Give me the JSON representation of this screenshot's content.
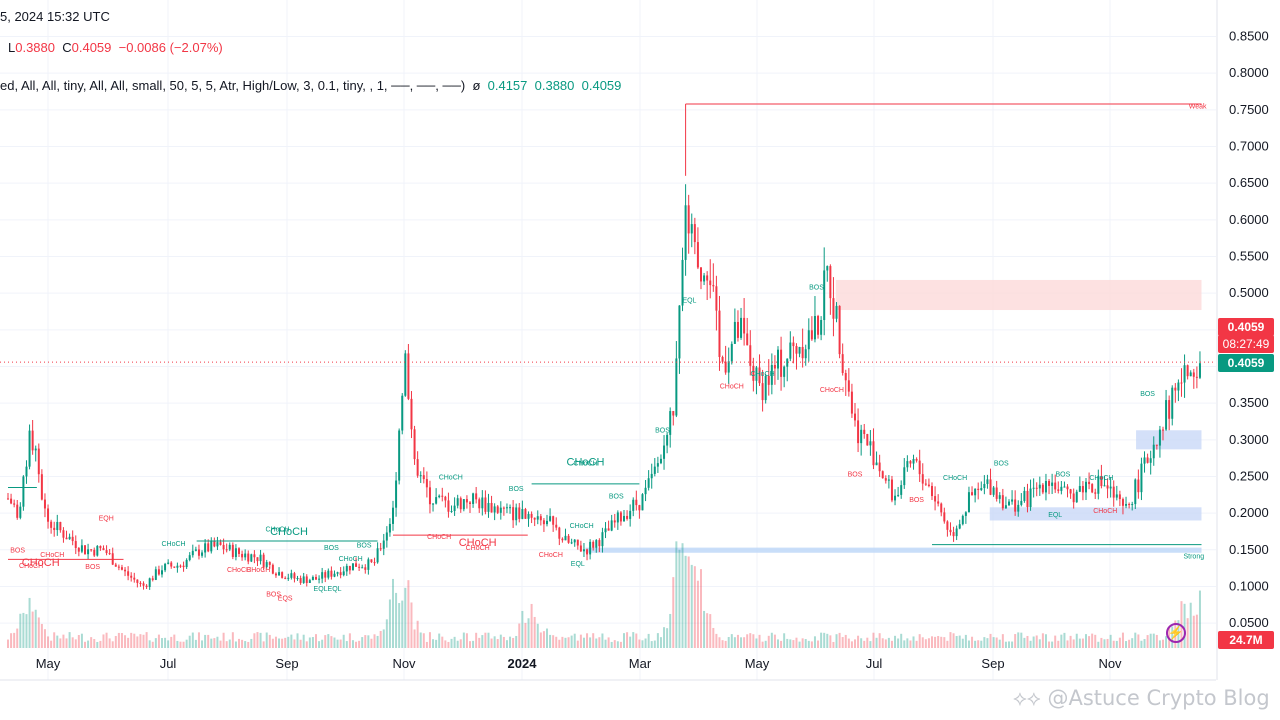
{
  "header": {
    "time": "5, 2024 15:32 UTC",
    "ohlc": {
      "l_label": "L",
      "l": "0.3880",
      "c_label": "C",
      "c": "0.4059",
      "chg": "−0.0086 (−2.07%)"
    },
    "indicator": {
      "params": "ed, All, All, tiny, All, All, small, 50, 5, 5, Atr, High/Low, 3, 0.1, tiny, , 1, ──, ──, ──)",
      "sym": "ø",
      "v1": "0.4157",
      "v2": "0.3880",
      "v3": "0.4059"
    }
  },
  "price_tags": {
    "last": "0.4059",
    "countdown": "08:27:49",
    "close": "0.4059",
    "volume": "24.7M"
  },
  "watermark": "@Astuce Crypto Blog",
  "colors": {
    "bull": "#089981",
    "bear": "#f23645",
    "grid": "#f0f3fa",
    "supply_zone": "#fcdada",
    "demand_zone": "#c9d8f8",
    "eq_line": "#bcd6f7"
  },
  "chart_data": {
    "type": "candlestick",
    "y_axis_ticks": [
      "0.8500",
      "0.8000",
      "0.7500",
      "0.7000",
      "0.6500",
      "0.6000",
      "0.5500",
      "0.5000",
      "0.4500",
      "0.4000",
      "0.3500",
      "0.3000",
      "0.2500",
      "0.2000",
      "0.1500",
      "0.1000",
      "0.0500"
    ],
    "ylim": [
      0.02,
      0.87
    ],
    "x_axis_labels": [
      "May",
      "Jul",
      "Sep",
      "Nov",
      "2024",
      "Mar",
      "May",
      "Jul",
      "Sep",
      "Nov"
    ],
    "last_price": 0.4059,
    "price_path": [
      [
        0.0,
        0.22
      ],
      [
        0.3,
        0.2
      ],
      [
        0.6,
        0.31
      ],
      [
        1.0,
        0.19
      ],
      [
        1.5,
        0.17
      ],
      [
        2.0,
        0.15
      ],
      [
        2.5,
        0.15
      ],
      [
        3.0,
        0.12
      ],
      [
        3.5,
        0.1
      ],
      [
        4.0,
        0.125
      ],
      [
        4.5,
        0.13
      ],
      [
        5.0,
        0.15
      ],
      [
        5.5,
        0.155
      ],
      [
        6.0,
        0.145
      ],
      [
        6.5,
        0.14
      ],
      [
        7.0,
        0.12
      ],
      [
        7.5,
        0.11
      ],
      [
        8.0,
        0.11
      ],
      [
        8.5,
        0.12
      ],
      [
        9.0,
        0.13
      ],
      [
        9.5,
        0.13
      ],
      [
        10.0,
        0.2
      ],
      [
        10.3,
        0.42
      ],
      [
        10.6,
        0.25
      ],
      [
        11.0,
        0.22
      ],
      [
        11.5,
        0.21
      ],
      [
        12.0,
        0.22
      ],
      [
        12.5,
        0.21
      ],
      [
        13.0,
        0.2
      ],
      [
        13.5,
        0.2
      ],
      [
        14.0,
        0.19
      ],
      [
        14.5,
        0.16
      ],
      [
        15.0,
        0.15
      ],
      [
        15.5,
        0.17
      ],
      [
        16.0,
        0.2
      ],
      [
        16.5,
        0.22
      ],
      [
        17.0,
        0.28
      ],
      [
        17.3,
        0.35
      ],
      [
        17.6,
        0.64
      ],
      [
        17.9,
        0.52
      ],
      [
        18.2,
        0.55
      ],
      [
        18.5,
        0.4
      ],
      [
        19.0,
        0.45
      ],
      [
        19.5,
        0.37
      ],
      [
        20.0,
        0.4
      ],
      [
        20.5,
        0.43
      ],
      [
        21.0,
        0.45
      ],
      [
        21.3,
        0.53
      ],
      [
        21.6,
        0.44
      ],
      [
        22.0,
        0.32
      ],
      [
        22.5,
        0.28
      ],
      [
        23.0,
        0.22
      ],
      [
        23.5,
        0.27
      ],
      [
        24.0,
        0.23
      ],
      [
        24.5,
        0.17
      ],
      [
        25.0,
        0.22
      ],
      [
        25.5,
        0.24
      ],
      [
        26.0,
        0.21
      ],
      [
        26.5,
        0.22
      ],
      [
        27.0,
        0.25
      ],
      [
        27.5,
        0.22
      ],
      [
        28.0,
        0.24
      ],
      [
        28.5,
        0.24
      ],
      [
        29.0,
        0.2
      ],
      [
        29.5,
        0.26
      ],
      [
        30.0,
        0.33
      ],
      [
        30.5,
        0.38
      ],
      [
        31.0,
        0.41
      ]
    ],
    "volume_peaks": [
      [
        0.6,
        0.85
      ],
      [
        10.0,
        0.55
      ],
      [
        10.3,
        0.75
      ],
      [
        13.6,
        0.55
      ],
      [
        17.4,
        1.0
      ],
      [
        17.7,
        0.9
      ],
      [
        18.0,
        0.6
      ],
      [
        30.5,
        0.45
      ],
      [
        31.0,
        0.55
      ]
    ],
    "annotations": [
      {
        "text": "CHoCH",
        "x": 0.6,
        "y": 0.125,
        "color": "bear",
        "size": "small"
      },
      {
        "text": "BOS",
        "x": 0.25,
        "y": 0.146,
        "color": "bear"
      },
      {
        "text": "CHoCH",
        "x": 1.15,
        "y": 0.14,
        "color": "bear"
      },
      {
        "text": "EQH",
        "x": 2.55,
        "y": 0.19,
        "color": "bear"
      },
      {
        "text": "BOS",
        "x": 2.2,
        "y": 0.124,
        "color": "bear"
      },
      {
        "text": "CHoCH",
        "x": 4.3,
        "y": 0.155,
        "color": "bull"
      },
      {
        "text": "CHoCH",
        "x": 6.5,
        "y": 0.12,
        "color": "bear"
      },
      {
        "text": "CHoCH",
        "x": 8.9,
        "y": 0.135,
        "color": "bull"
      },
      {
        "text": "BOS",
        "x": 8.4,
        "y": 0.15,
        "color": "bull"
      },
      {
        "text": "CHoCH",
        "x": 7.0,
        "y": 0.175,
        "color": "bull",
        "size": "small"
      },
      {
        "text": "BOS",
        "x": 6.9,
        "y": 0.086,
        "color": "bear"
      },
      {
        "text": "EQS",
        "x": 7.2,
        "y": 0.081,
        "color": "bear"
      },
      {
        "text": "CHoCH",
        "x": 6.0,
        "y": 0.12,
        "color": "bear"
      },
      {
        "text": "EQLEQL",
        "x": 8.3,
        "y": 0.094,
        "color": "bull"
      },
      {
        "text": "BOS",
        "x": 9.25,
        "y": 0.153,
        "color": "bull"
      },
      {
        "text": "BOS",
        "x": 13.2,
        "y": 0.23,
        "color": "bull"
      },
      {
        "text": "CHoCH",
        "x": 11.5,
        "y": 0.246,
        "color": "bull"
      },
      {
        "text": "CHoCH",
        "x": 11.2,
        "y": 0.165,
        "color": "bear"
      },
      {
        "text": "CHoCH",
        "x": 12.2,
        "y": 0.15,
        "color": "bear",
        "size": "small"
      },
      {
        "text": "CHoCH",
        "x": 15.0,
        "y": 0.265,
        "color": "bull",
        "size": "small"
      },
      {
        "text": "CHoCH",
        "x": 14.9,
        "y": 0.18,
        "color": "bull"
      },
      {
        "text": "BOS",
        "x": 15.8,
        "y": 0.22,
        "color": "bull"
      },
      {
        "text": "CHoCH",
        "x": 14.1,
        "y": 0.14,
        "color": "bear"
      },
      {
        "text": "EQL",
        "x": 14.8,
        "y": 0.128,
        "color": "bull"
      },
      {
        "text": "BOS",
        "x": 17.0,
        "y": 0.31,
        "color": "bull"
      },
      {
        "text": "EQL",
        "x": 17.7,
        "y": 0.487,
        "color": "bull"
      },
      {
        "text": "CHoCH",
        "x": 19.6,
        "y": 0.387,
        "color": "bull"
      },
      {
        "text": "CHoCH",
        "x": 18.8,
        "y": 0.37,
        "color": "bear"
      },
      {
        "text": "BOS",
        "x": 21.0,
        "y": 0.505,
        "color": "bull"
      },
      {
        "text": "CHoCH",
        "x": 21.4,
        "y": 0.365,
        "color": "bear"
      },
      {
        "text": "BOS",
        "x": 22.0,
        "y": 0.25,
        "color": "bear"
      },
      {
        "text": "BOS",
        "x": 23.6,
        "y": 0.215,
        "color": "bear"
      },
      {
        "text": "CHoCH",
        "x": 24.6,
        "y": 0.245,
        "color": "bull"
      },
      {
        "text": "BOS",
        "x": 25.8,
        "y": 0.265,
        "color": "bull"
      },
      {
        "text": "BOS",
        "x": 27.4,
        "y": 0.25,
        "color": "bull"
      },
      {
        "text": "CHoCH",
        "x": 28.4,
        "y": 0.245,
        "color": "bull"
      },
      {
        "text": "EQL",
        "x": 27.2,
        "y": 0.195,
        "color": "bull"
      },
      {
        "text": "CHoCH",
        "x": 28.5,
        "y": 0.2,
        "color": "bear"
      },
      {
        "text": "BOS",
        "x": 29.6,
        "y": 0.36,
        "color": "bull"
      },
      {
        "text": "Weak",
        "x": 30.9,
        "y": 0.752,
        "color": "bear"
      },
      {
        "text": "Strong",
        "x": 30.8,
        "y": 0.138,
        "color": "bull"
      }
    ],
    "structure_lines": [
      {
        "x1": 0.0,
        "x2": 3.0,
        "y": 0.137,
        "color": "bear"
      },
      {
        "x1": 0.0,
        "x2": 0.75,
        "y": 0.235,
        "color": "bull"
      },
      {
        "x1": 4.9,
        "x2": 9.6,
        "y": 0.162,
        "color": "bull"
      },
      {
        "x1": 10.0,
        "x2": 13.5,
        "y": 0.17,
        "color": "bear"
      },
      {
        "x1": 13.6,
        "x2": 16.4,
        "y": 0.24,
        "color": "bull"
      },
      {
        "x1": 17.6,
        "x2": 31.0,
        "y": 0.758,
        "color": "bear"
      },
      {
        "x1": 24.0,
        "x2": 31.0,
        "y": 0.157,
        "color": "bull"
      }
    ],
    "big_labels": [
      {
        "text": "CHoCH",
        "x": 0.85,
        "y": 0.128,
        "color": "bear"
      },
      {
        "text": "CHoCH",
        "x": 7.3,
        "y": 0.17,
        "color": "bull"
      },
      {
        "text": "CHoCH",
        "x": 12.2,
        "y": 0.155,
        "color": "bear"
      },
      {
        "text": "CHoCH",
        "x": 15.0,
        "y": 0.265,
        "color": "bull"
      }
    ],
    "zones": [
      {
        "x1": 21.5,
        "x2": 31.0,
        "y1": 0.477,
        "y2": 0.518,
        "color": "supply_zone"
      },
      {
        "x1": 29.3,
        "x2": 31.0,
        "y1": 0.287,
        "y2": 0.313,
        "color": "demand_zone"
      },
      {
        "x1": 25.5,
        "x2": 31.0,
        "y1": 0.19,
        "y2": 0.208,
        "color": "demand_zone"
      },
      {
        "x1": 15.0,
        "x2": 31.0,
        "y1": 0.146,
        "y2": 0.153,
        "color": "eq_line"
      }
    ]
  }
}
